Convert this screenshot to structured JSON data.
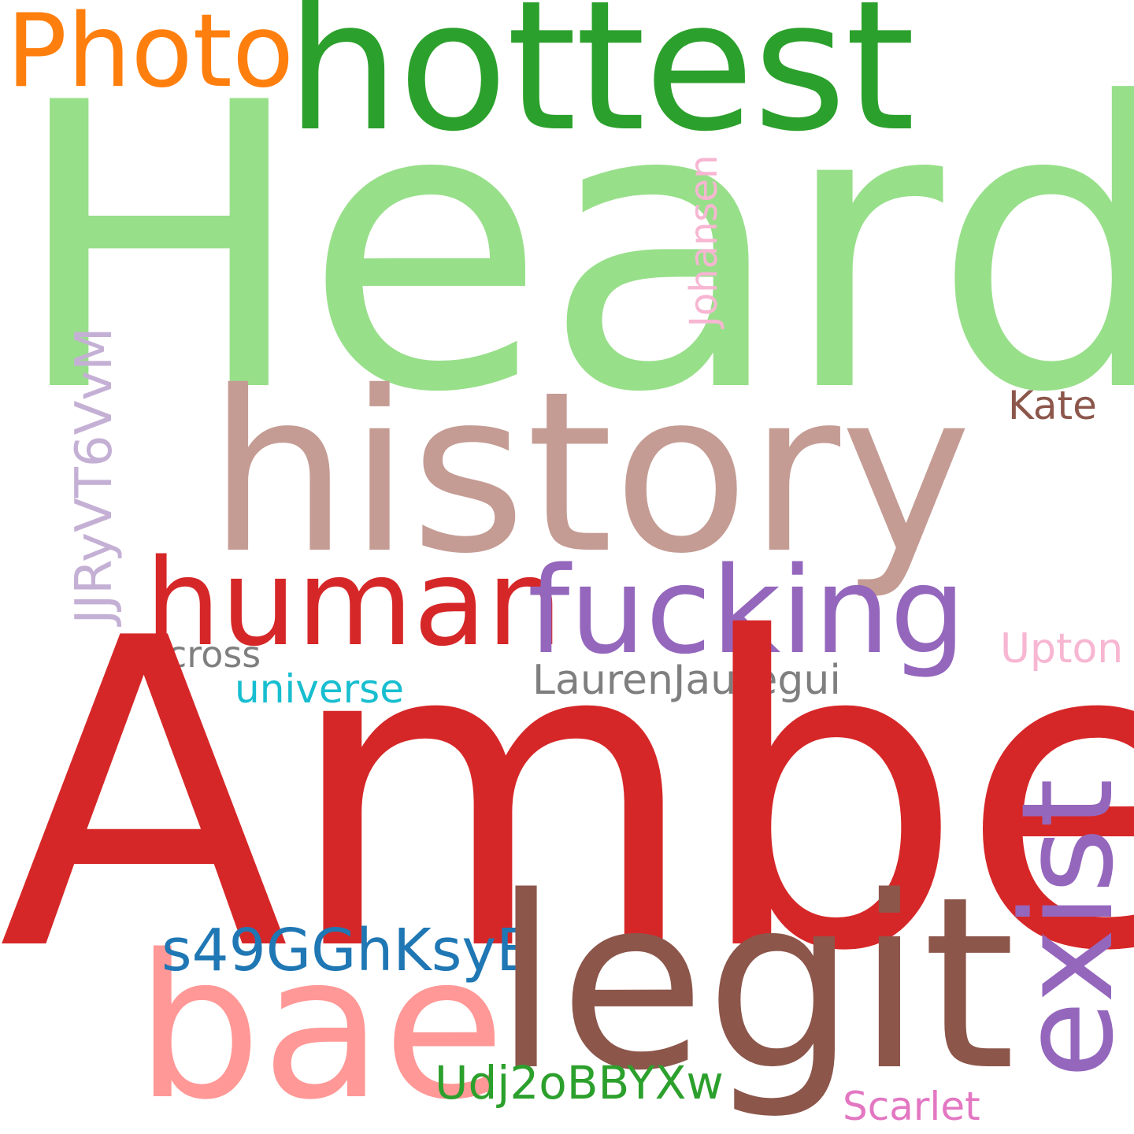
{
  "word_cloud": {
    "words": {
      "heard": {
        "text": "Heard",
        "color": "#98df8a"
      },
      "hottest": {
        "text": "hottest",
        "color": "#2ca02c"
      },
      "photo": {
        "text": "Photo",
        "color": "#ff7f0e"
      },
      "history": {
        "text": "history",
        "color": "#c49c94"
      },
      "amber": {
        "text": "Amber",
        "color": "#d62728"
      },
      "human": {
        "text": "human",
        "color": "#d62728"
      },
      "fucking": {
        "text": "fucking",
        "color": "#9467bd"
      },
      "legit": {
        "text": "legit",
        "color": "#8c564b"
      },
      "bae": {
        "text": "bae",
        "color": "#ff9896"
      },
      "exist": {
        "text": "exist",
        "color": "#9467bd"
      },
      "jjr": {
        "text": "JJRyVT6VvM",
        "color": "#c5b0d5"
      },
      "johansen": {
        "text": "Johansen",
        "color": "#f7b6d2"
      },
      "kate": {
        "text": "Kate",
        "color": "#8c564b"
      },
      "cross": {
        "text": "cross",
        "color": "#7f7f7f"
      },
      "universe": {
        "text": "universe",
        "color": "#17becf"
      },
      "lauren": {
        "text": "LaurenJauregui",
        "color": "#7f7f7f"
      },
      "upton": {
        "text": "Upton",
        "color": "#f7b6d2"
      },
      "s49": {
        "text": "s49GGhKsyE",
        "color": "#1f77b4"
      },
      "udj": {
        "text": "Udj2oBBYXw",
        "color": "#2ca02c"
      },
      "scarlet": {
        "text": "Scarlet",
        "color": "#e377c2"
      }
    }
  }
}
